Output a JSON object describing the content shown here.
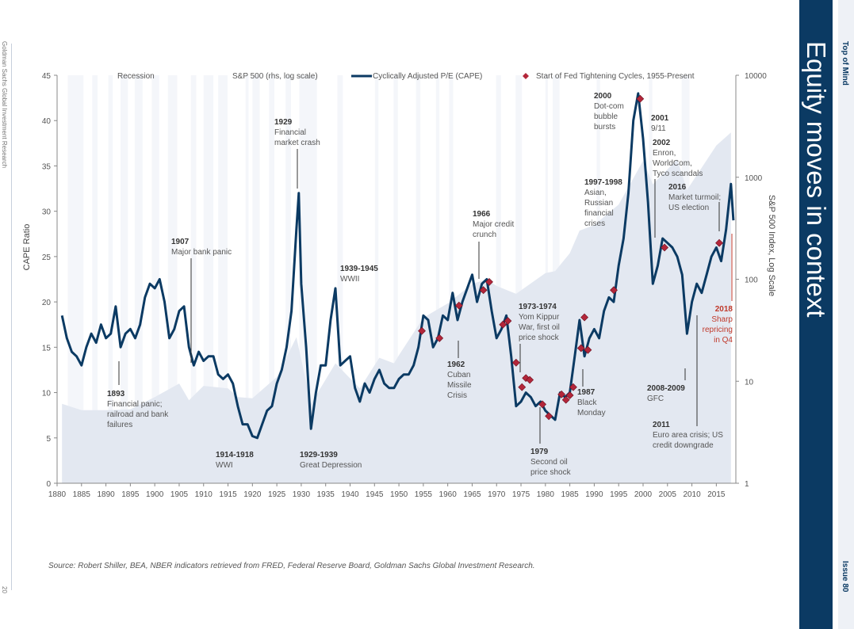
{
  "page": {
    "title": "Equity moves in context",
    "brand": "Top of Mind",
    "issue": "Issue 80",
    "left_credit": "Goldman Sachs Global Investment Research",
    "page_number": "20",
    "source": "Source: Robert Shiller, BEA, NBER indicators retrieved from FRED, Federal Reserve Board, Goldman Sachs Global Investment Research."
  },
  "colors": {
    "cape_line": "#0b3a63",
    "sp500_area": "#e3e8f1",
    "fed_marker": "#b3263a",
    "sidebar": "#0b3a63",
    "highlight_text": "#c0392b"
  },
  "chart_data": {
    "type": "line",
    "xlabel": "",
    "ylabel": "CAPE Ratio",
    "y2label": "S&P 500 Index, Log Scale",
    "xlim": [
      1880,
      2019
    ],
    "ylim": [
      0,
      45
    ],
    "y2lim": [
      1,
      10000
    ],
    "y2_scale": "log",
    "x_ticks": [
      "1880",
      "1885",
      "1890",
      "1895",
      "1900",
      "1905",
      "1910",
      "1915",
      "1920",
      "1925",
      "1930",
      "1935",
      "1940",
      "1945",
      "1950",
      "1955",
      "1960",
      "1965",
      "1970",
      "1975",
      "1980",
      "1985",
      "1990",
      "1995",
      "2000",
      "2005",
      "2010",
      "2015"
    ],
    "y_ticks": [
      "0",
      "5",
      "10",
      "15",
      "20",
      "25",
      "30",
      "35",
      "40",
      "45"
    ],
    "y2_ticks": [
      "1",
      "10",
      "100",
      "1000",
      "10000"
    ],
    "legend": {
      "position": "top",
      "items": [
        {
          "label": "Recession",
          "symbol": "none"
        },
        {
          "label": "S&P 500 (rhs, log scale)",
          "symbol": "none"
        },
        {
          "label": "Cyclically Adjusted P/E (CAPE)",
          "symbol": "line"
        },
        {
          "label": "Start of Fed Tightening Cycles, 1955-Present",
          "symbol": "diamond"
        }
      ]
    },
    "series": [
      {
        "name": "Cyclically Adjusted P/E (CAPE)",
        "axis": "left",
        "x": [
          1881,
          1882,
          1883,
          1884,
          1885,
          1886,
          1887,
          1888,
          1889,
          1890,
          1891,
          1892,
          1893,
          1894,
          1895,
          1896,
          1897,
          1898,
          1899,
          1900,
          1901,
          1902,
          1903,
          1904,
          1905,
          1906,
          1907,
          1908,
          1909,
          1910,
          1911,
          1912,
          1913,
          1914,
          1915,
          1916,
          1917,
          1918,
          1919,
          1920,
          1921,
          1922,
          1923,
          1924,
          1925,
          1926,
          1927,
          1928,
          1929,
          1929.5,
          1930,
          1931,
          1932,
          1933,
          1934,
          1935,
          1936,
          1937,
          1938,
          1939,
          1940,
          1941,
          1942,
          1943,
          1944,
          1945,
          1946,
          1947,
          1948,
          1949,
          1950,
          1951,
          1952,
          1953,
          1954,
          1955,
          1956,
          1957,
          1958,
          1959,
          1960,
          1961,
          1962,
          1963,
          1964,
          1965,
          1966,
          1967,
          1968,
          1969,
          1970,
          1971,
          1972,
          1973,
          1974,
          1975,
          1976,
          1977,
          1978,
          1979,
          1980,
          1981,
          1982,
          1983,
          1984,
          1985,
          1986,
          1987,
          1988,
          1989,
          1990,
          1991,
          1992,
          1993,
          1994,
          1995,
          1996,
          1997,
          1998,
          1999,
          2000,
          2001,
          2002,
          2003,
          2004,
          2005,
          2006,
          2007,
          2008,
          2009,
          2010,
          2011,
          2012,
          2013,
          2014,
          2015,
          2016,
          2017,
          2018,
          2018.5
        ],
        "values": [
          18.5,
          16,
          14.5,
          14,
          13,
          15,
          16.5,
          15.5,
          17.5,
          16,
          16.5,
          19.5,
          15,
          16.5,
          17,
          16,
          17.5,
          20.5,
          22,
          21.5,
          22.5,
          20,
          16,
          17,
          19,
          19.5,
          15,
          13,
          14.5,
          13.5,
          14,
          14,
          12,
          11.5,
          12,
          11,
          8.5,
          6.5,
          6.5,
          5.2,
          5,
          6.5,
          8,
          8.5,
          11,
          12.5,
          15,
          19,
          28,
          32,
          22,
          15,
          6,
          10,
          13,
          13,
          18,
          21.5,
          13,
          13.5,
          14,
          10.5,
          9,
          11,
          10,
          11.5,
          12.5,
          11,
          10.5,
          10.5,
          11.5,
          12,
          12,
          13,
          15,
          18.5,
          18,
          15,
          16,
          18.5,
          18,
          21,
          18,
          20,
          21.5,
          23,
          20,
          22,
          22.5,
          19,
          16,
          17,
          18.5,
          14,
          8.5,
          9,
          10,
          9.5,
          8.5,
          9,
          8,
          7.5,
          7,
          10,
          9.5,
          10,
          14,
          18,
          14,
          16,
          17,
          16,
          19,
          20.5,
          20,
          24,
          27,
          32,
          40,
          43,
          38,
          31,
          22,
          24,
          27,
          26.5,
          26,
          25,
          23,
          16.5,
          20,
          22,
          21,
          23,
          25,
          26,
          24.5,
          28,
          33,
          29
        ]
      },
      {
        "name": "S&P 500 (rhs, log scale)",
        "axis": "right",
        "x": [
          1881,
          1885,
          1890,
          1895,
          1900,
          1905,
          1907,
          1910,
          1915,
          1917,
          1920,
          1925,
          1929,
          1932,
          1937,
          1942,
          1946,
          1949,
          1950,
          1955,
          1960,
          1965,
          1968,
          1970,
          1974,
          1980,
          1982,
          1985,
          1987,
          1990,
          1995,
          2000,
          2002,
          2007,
          2009,
          2015,
          2018
        ],
        "values": [
          6,
          5.2,
          5.2,
          5.3,
          7,
          9.5,
          6.5,
          9,
          8.5,
          7,
          6.8,
          11,
          27,
          6,
          15,
          8.5,
          17,
          15,
          18,
          42,
          58,
          90,
          100,
          86,
          72,
          115,
          120,
          180,
          300,
          340,
          540,
          1450,
          850,
          1500,
          750,
          2050,
          2750
        ]
      }
    ],
    "recessions": [
      [
        1882.2,
        1885.4
      ],
      [
        1887.2,
        1888.3
      ],
      [
        1890.5,
        1891.4
      ],
      [
        1893,
        1894.5
      ],
      [
        1895.9,
        1897.5
      ],
      [
        1899.4,
        1900.9
      ],
      [
        1902.7,
        1904.6
      ],
      [
        1907.4,
        1908.5
      ],
      [
        1910,
        1912
      ],
      [
        1913,
        1914.9
      ],
      [
        1918.6,
        1919.2
      ],
      [
        1920,
        1921.5
      ],
      [
        1923.4,
        1924.5
      ],
      [
        1926.8,
        1927.9
      ],
      [
        1929.6,
        1933.2
      ],
      [
        1937.4,
        1938.5
      ],
      [
        1945.1,
        1945.8
      ],
      [
        1948.9,
        1949.8
      ],
      [
        1953.5,
        1954.4
      ],
      [
        1957.6,
        1958.3
      ],
      [
        1960.3,
        1961.1
      ],
      [
        1969.9,
        1970.9
      ],
      [
        1973.9,
        1975.2
      ],
      [
        1980,
        1980.5
      ],
      [
        1981.5,
        1982.9
      ],
      [
        1990.5,
        1991.2
      ],
      [
        2001.2,
        2001.9
      ],
      [
        2007.9,
        2009.5
      ]
    ],
    "fed_tightening_starts": [
      {
        "x": 1954.7,
        "y": 16.8
      },
      {
        "x": 1958.3,
        "y": 16
      },
      {
        "x": 1962.3,
        "y": 19.6
      },
      {
        "x": 1967.3,
        "y": 21.3
      },
      {
        "x": 1968.5,
        "y": 22.2
      },
      {
        "x": 1971.3,
        "y": 17.5
      },
      {
        "x": 1972.3,
        "y": 17.9
      },
      {
        "x": 1974,
        "y": 13.3
      },
      {
        "x": 1975.2,
        "y": 10.6
      },
      {
        "x": 1976,
        "y": 11.6
      },
      {
        "x": 1976.8,
        "y": 11.4
      },
      {
        "x": 1979.4,
        "y": 8.7
      },
      {
        "x": 1980.7,
        "y": 7.4
      },
      {
        "x": 1983.3,
        "y": 9.8
      },
      {
        "x": 1984.2,
        "y": 9.2
      },
      {
        "x": 1985,
        "y": 9.7
      },
      {
        "x": 1985.7,
        "y": 10.6
      },
      {
        "x": 1987.3,
        "y": 14.9
      },
      {
        "x": 1988,
        "y": 18.3
      },
      {
        "x": 1988.7,
        "y": 14.7
      },
      {
        "x": 1994,
        "y": 21.3
      },
      {
        "x": 1999.4,
        "y": 42.4
      },
      {
        "x": 2004.4,
        "y": 26
      },
      {
        "x": 2015.6,
        "y": 26.5
      }
    ],
    "annotations": [
      {
        "year": "1893",
        "text": [
          "Financial panic;",
          "railroad and bank",
          "failures"
        ]
      },
      {
        "year": "1907",
        "text": [
          "Major bank panic"
        ]
      },
      {
        "year": "1914-1918",
        "text": [
          "WWI"
        ]
      },
      {
        "year": "1929",
        "text": [
          "Financial",
          "market crash"
        ]
      },
      {
        "year": "1929-1939",
        "text": [
          "Great Depression"
        ]
      },
      {
        "year": "1939-1945",
        "text": [
          "WWII"
        ]
      },
      {
        "year": "1962",
        "text": [
          "Cuban",
          "Missile",
          "Crisis"
        ]
      },
      {
        "year": "1966",
        "text": [
          "Major credit",
          "crunch"
        ]
      },
      {
        "year": "1973-1974",
        "text": [
          "Yom Kippur",
          "War, first oil",
          "price shock"
        ]
      },
      {
        "year": "1979",
        "text": [
          "Second oil",
          "price shock"
        ]
      },
      {
        "year": "1987",
        "text": [
          "Black",
          "Monday"
        ]
      },
      {
        "year": "1997-1998",
        "text": [
          "Asian,",
          "Russian",
          "financial",
          "crises"
        ]
      },
      {
        "year": "2000",
        "text": [
          "Dot-com",
          "bubble",
          "bursts"
        ]
      },
      {
        "year": "2001",
        "text": [
          "9/11"
        ]
      },
      {
        "year": "2002",
        "text": [
          "Enron,",
          "WorldCom,",
          "Tyco scandals"
        ]
      },
      {
        "year": "2008-2009",
        "text": [
          "GFC"
        ]
      },
      {
        "year": "2011",
        "text": [
          "Euro area crisis; US",
          "credit downgrade"
        ]
      },
      {
        "year": "2016",
        "text": [
          "Market turmoil;",
          "US election"
        ]
      },
      {
        "year": "2018",
        "text": [
          "Sharp",
          "repricing",
          "in Q4"
        ]
      }
    ]
  }
}
